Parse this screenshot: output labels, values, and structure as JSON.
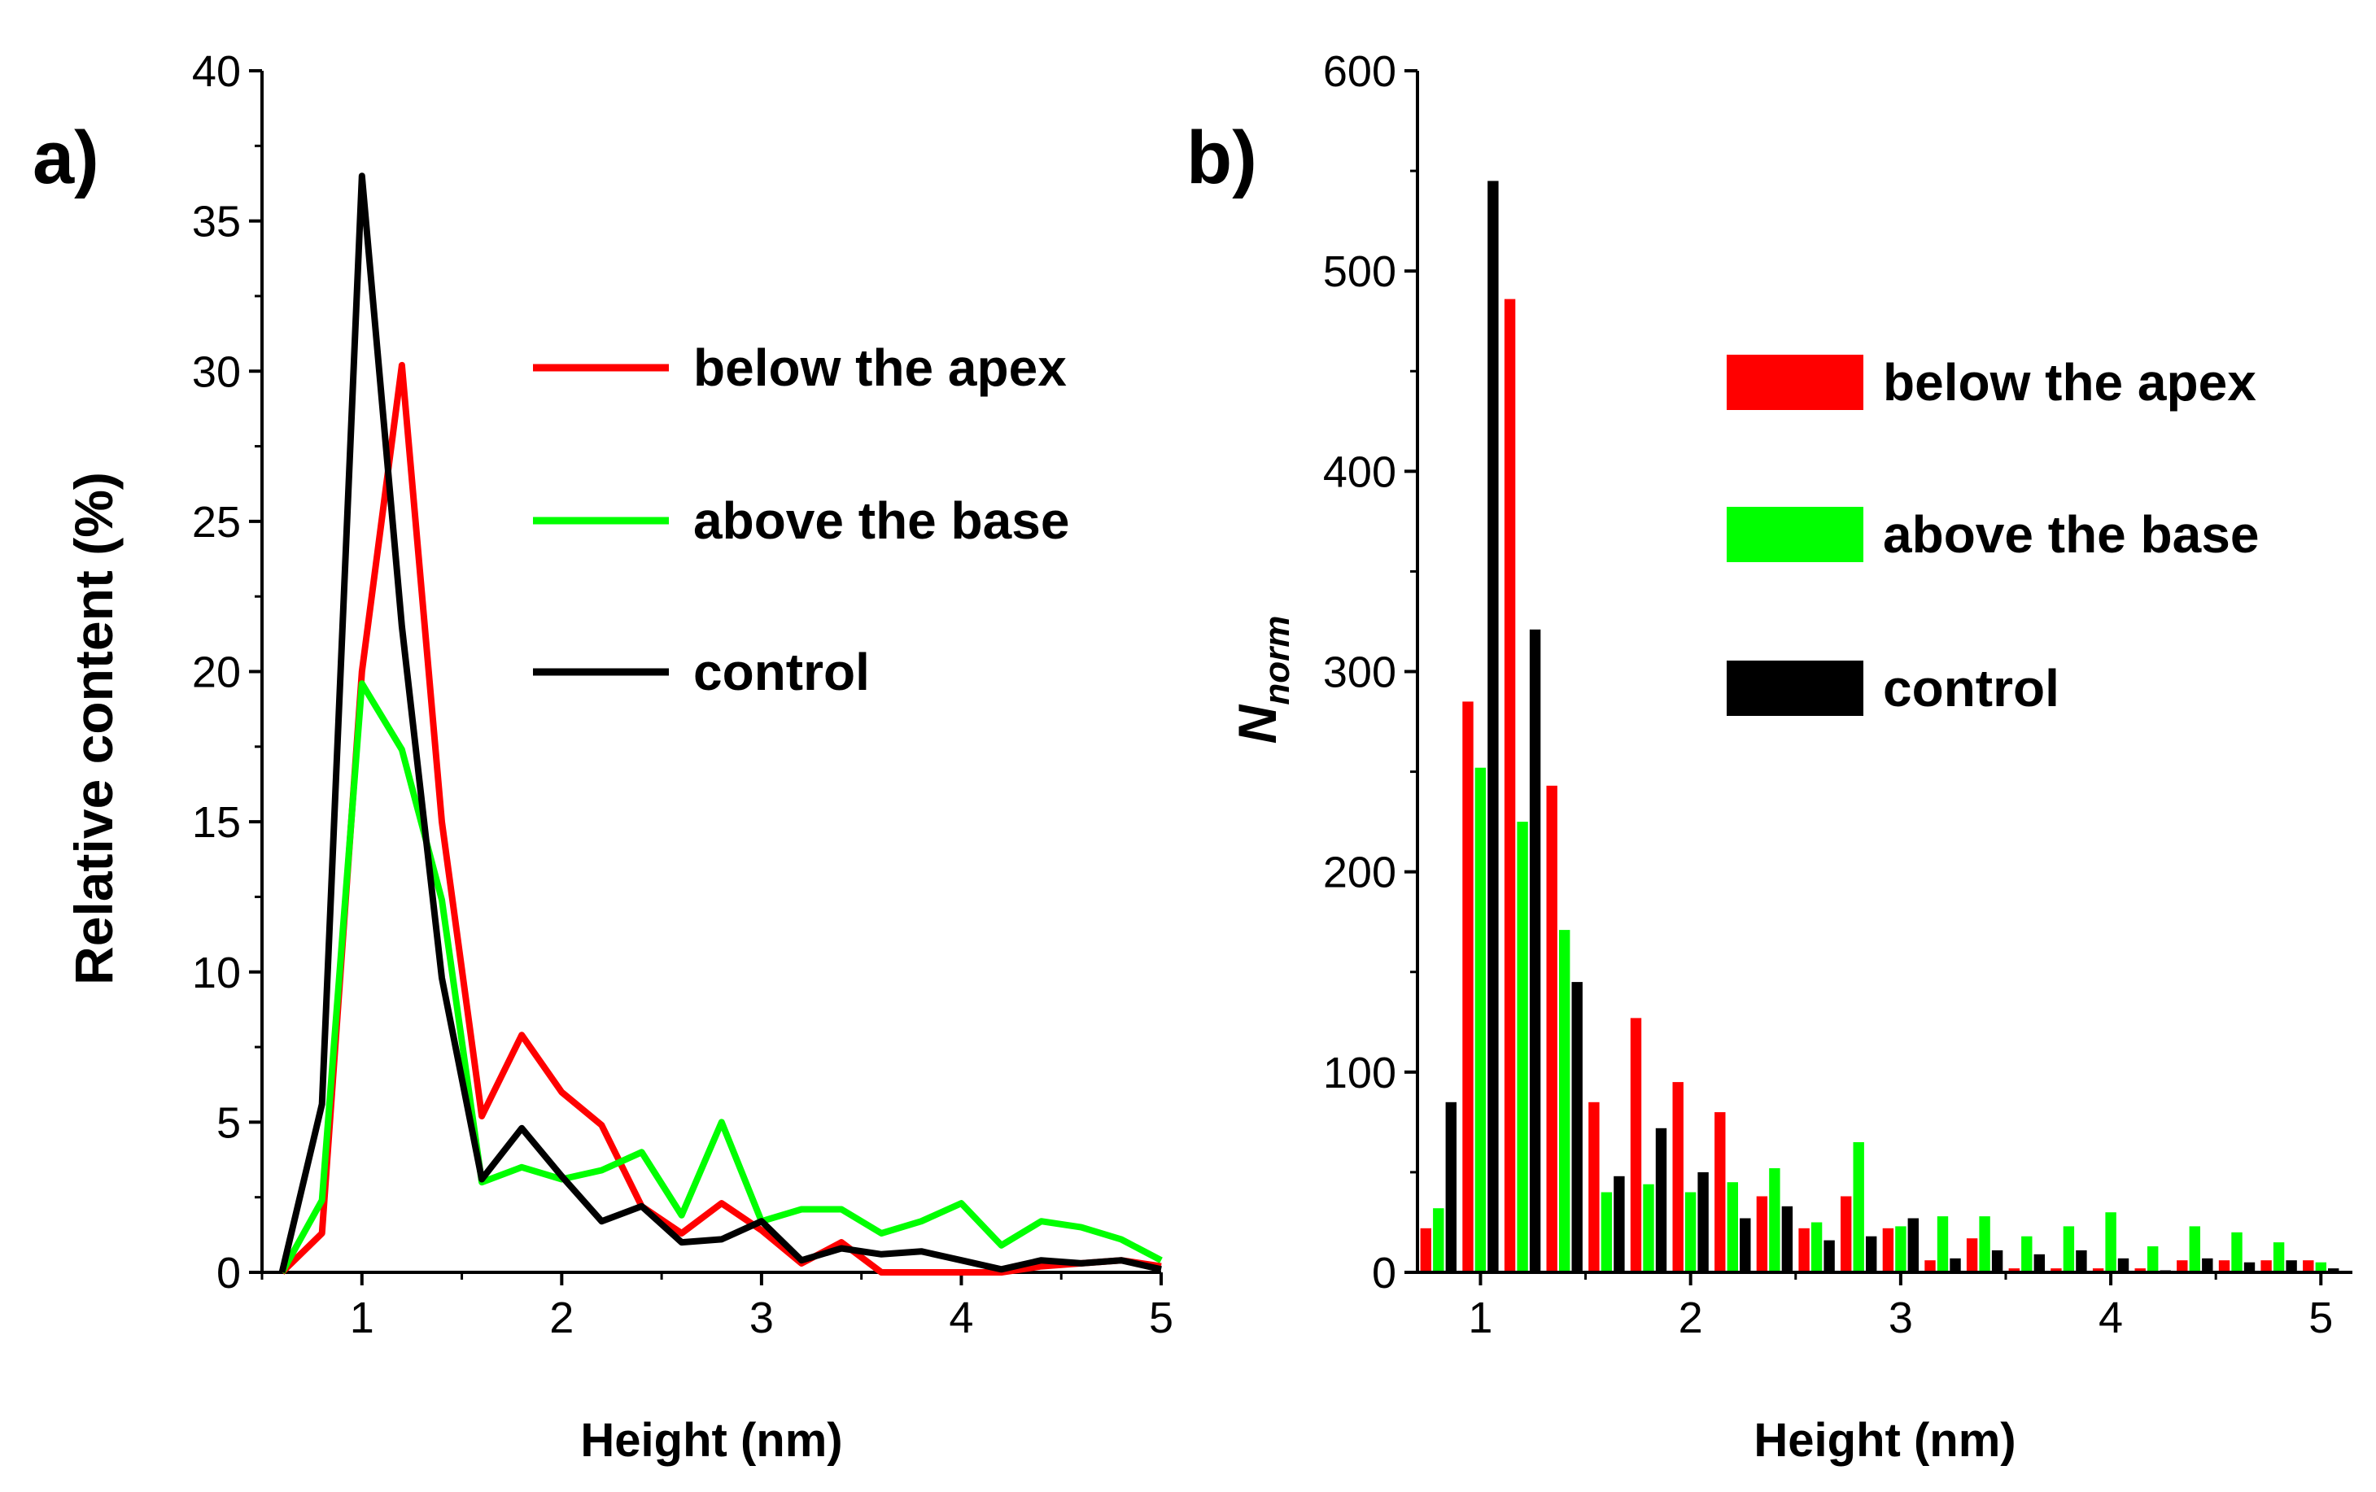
{
  "chart_data": [
    {
      "type": "line",
      "panel_label": "a)",
      "xlabel": "Height (nm)",
      "ylabel": "Relative content (%)",
      "xlim": [
        0.5,
        5
      ],
      "ylim": [
        0,
        40
      ],
      "xticks": [
        1,
        2,
        3,
        4,
        5
      ],
      "yticks": [
        0,
        5,
        10,
        15,
        20,
        25,
        30,
        35,
        40
      ],
      "legend_position": "upper-right",
      "x": [
        0.6,
        0.8,
        1.0,
        1.2,
        1.4,
        1.6,
        1.8,
        2.0,
        2.2,
        2.4,
        2.6,
        2.8,
        3.0,
        3.2,
        3.4,
        3.6,
        3.8,
        4.0,
        4.2,
        4.4,
        4.6,
        4.8,
        5.0
      ],
      "series": [
        {
          "name": "below the apex",
          "color": "#ff0000",
          "values": [
            0,
            1.3,
            20,
            30.2,
            15,
            5.2,
            7.9,
            6.0,
            4.9,
            2.2,
            1.3,
            2.3,
            1.4,
            0.3,
            1.0,
            0.0,
            0.0,
            0.0,
            0.0,
            0.2,
            0.3,
            0.4,
            0.2
          ]
        },
        {
          "name": "above the base",
          "color": "#00ff00",
          "values": [
            0,
            2.4,
            19.6,
            17.4,
            12.4,
            3.0,
            3.5,
            3.1,
            3.4,
            4.0,
            1.9,
            5.0,
            1.7,
            2.1,
            2.1,
            1.3,
            1.7,
            2.3,
            0.9,
            1.7,
            1.5,
            1.1,
            0.4
          ]
        },
        {
          "name": "control",
          "color": "#000000",
          "values": [
            0,
            5.6,
            36.5,
            21.5,
            9.8,
            3.1,
            4.8,
            3.2,
            1.7,
            2.2,
            1.0,
            1.1,
            1.7,
            0.4,
            0.8,
            0.6,
            0.7,
            0.4,
            0.1,
            0.4,
            0.3,
            0.4,
            0.1
          ]
        }
      ]
    },
    {
      "type": "bar",
      "panel_label": "b)",
      "xlabel": "Height (nm)",
      "ylabel": "N",
      "ylabel_subscript": "norm",
      "xlim": [
        0.7,
        5.15
      ],
      "ylim": [
        0,
        600
      ],
      "xticks": [
        1,
        2,
        3,
        4,
        5
      ],
      "yticks": [
        0,
        100,
        200,
        300,
        400,
        500,
        600
      ],
      "legend_position": "upper-right",
      "x": [
        0.8,
        1.0,
        1.2,
        1.4,
        1.6,
        1.8,
        2.0,
        2.2,
        2.4,
        2.6,
        2.8,
        3.0,
        3.2,
        3.4,
        3.6,
        3.8,
        4.0,
        4.2,
        4.4,
        4.6,
        4.8,
        5.0
      ],
      "series": [
        {
          "name": "below the apex",
          "color": "#ff0000",
          "values": [
            22,
            285,
            486,
            243,
            85,
            127,
            95,
            80,
            38,
            22,
            38,
            22,
            6,
            17,
            2,
            2,
            2,
            2,
            6,
            6,
            6,
            6
          ]
        },
        {
          "name": "above the base",
          "color": "#00ff00",
          "values": [
            32,
            252,
            225,
            171,
            40,
            44,
            40,
            45,
            52,
            25,
            65,
            23,
            28,
            28,
            18,
            23,
            30,
            13,
            23,
            20,
            15,
            5
          ]
        },
        {
          "name": "control",
          "color": "#000000",
          "values": [
            85,
            545,
            321,
            145,
            48,
            72,
            50,
            27,
            33,
            16,
            18,
            27,
            7,
            11,
            9,
            11,
            7,
            1,
            7,
            5,
            6,
            2
          ]
        }
      ]
    }
  ]
}
